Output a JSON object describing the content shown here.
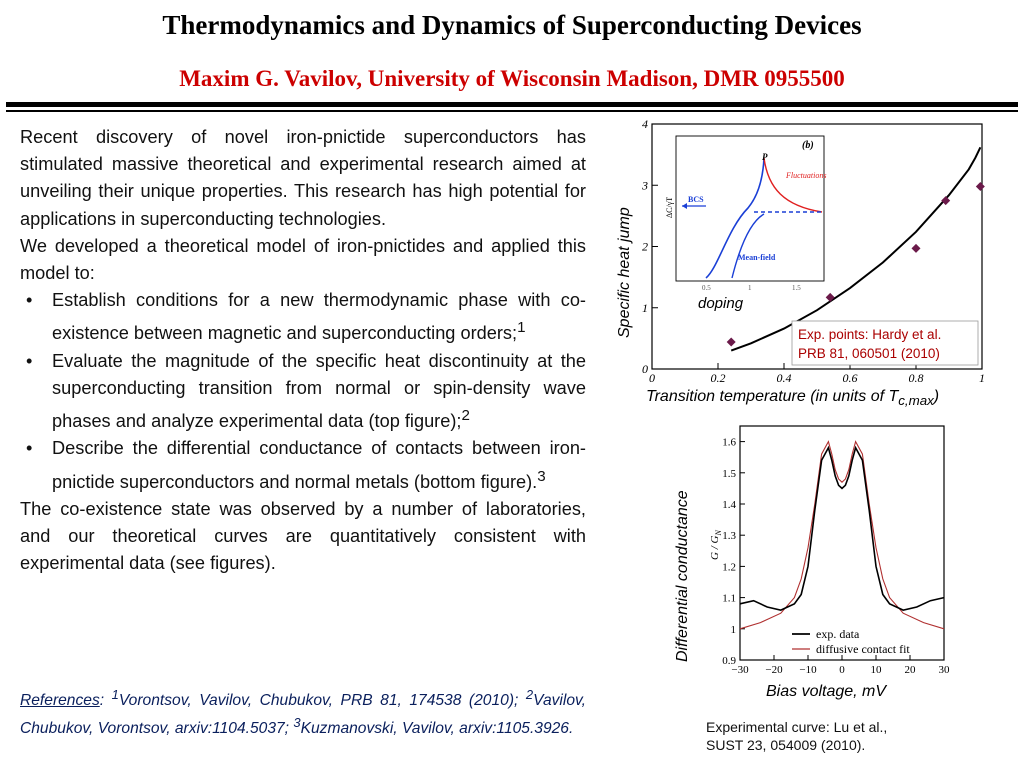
{
  "header": {
    "title": "Thermodynamics and Dynamics of Superconducting Devices",
    "subtitle": "Maxim G. Vavilov, University of Wisconsin Madison, DMR 0955500"
  },
  "body": {
    "para1": "Recent discovery of novel iron-pnictide superconductors has stimulated massive theoretical and experimental research aimed at unveiling their unique properties. This research has high potential for applications in superconducting technologies.",
    "para2": "We developed a theoretical model of iron-pnictides and applied this model to:",
    "bullets": [
      {
        "text": "Establish conditions for a new thermodynamic phase with co-existence between magnetic and superconducting orders;",
        "sup": "1"
      },
      {
        "text": "Evaluate the magnitude of the specific heat discontinuity at the superconducting transition from normal or spin-density wave phases and analyze experimental data (top figure);",
        "sup": "2"
      },
      {
        "text": "Describe the differential conductance of contacts between iron-pnictide superconductors and normal metals (bottom figure).",
        "sup": "3"
      }
    ],
    "para3": "The co-existence state was observed by a number of laboratories, and our theoretical curves are quantitatively consistent with experimental data (see figures)."
  },
  "references": {
    "lead": "References",
    "colon": ": ",
    "sup1": "1",
    "ref1": "Vorontsov, Vavilov, Chubukov, PRB 81, 174538 (2010); ",
    "sup2": "2",
    "ref2": "Vavilov, Chubukov, Vorontsov, arxiv:1104.5037; ",
    "sup3": "3",
    "ref3": "Kuzmanovski, Vavilov, arxiv:1105.3926."
  },
  "chart_data": [
    {
      "type": "scatter",
      "ylabel": "Specific heat jump",
      "xlabel_main": "Transition temperature (in units of T",
      "xlabel_sub": "c,max",
      "xlabel_end": ")",
      "xlim": [
        0,
        1
      ],
      "ylim": [
        0,
        4
      ],
      "x_ticks": [
        "0",
        "0.2",
        "0.4",
        "0.6",
        "0.8",
        "1"
      ],
      "y_ticks": [
        "0",
        "1",
        "2",
        "3",
        "4"
      ],
      "annotation_doping": "doping",
      "legend_line1": "Exp. points: Hardy et al.",
      "legend_line2": "PRB 81, 060501 (2010)",
      "points": [
        {
          "x": 0.24,
          "y": 0.44
        },
        {
          "x": 0.54,
          "y": 1.17
        },
        {
          "x": 0.8,
          "y": 1.97
        },
        {
          "x": 0.89,
          "y": 2.75
        },
        {
          "x": 0.995,
          "y": 2.98
        }
      ],
      "curve": [
        {
          "x": 0.24,
          "y": 0.3
        },
        {
          "x": 0.3,
          "y": 0.42
        },
        {
          "x": 0.4,
          "y": 0.66
        },
        {
          "x": 0.5,
          "y": 0.96
        },
        {
          "x": 0.6,
          "y": 1.32
        },
        {
          "x": 0.7,
          "y": 1.74
        },
        {
          "x": 0.8,
          "y": 2.24
        },
        {
          "x": 0.9,
          "y": 2.84
        },
        {
          "x": 0.96,
          "y": 3.26
        },
        {
          "x": 0.98,
          "y": 3.45
        },
        {
          "x": 0.995,
          "y": 3.62
        }
      ],
      "inset": {
        "panel_label": "(b)",
        "ylabel": "ΔC/γT",
        "label_p": "P",
        "label_fluct": "Fluctuations",
        "label_bcs": "BCS",
        "label_meanfield": "Mean-field",
        "x_ticks": [
          "0.5",
          "1",
          "1.5"
        ]
      }
    },
    {
      "type": "line",
      "ylabel_outer": "Differential conductance",
      "ylabel_inner": "G / G",
      "ylabel_inner_sub": "N",
      "xlabel": "Bias voltage, mV",
      "xlim": [
        -30,
        30
      ],
      "ylim": [
        0.9,
        1.65
      ],
      "x_ticks": [
        "-30",
        "-20",
        "-10",
        "0",
        "10",
        "20",
        "30"
      ],
      "y_ticks": [
        "0.9",
        "1",
        "1.1",
        "1.2",
        "1.3",
        "1.4",
        "1.5",
        "1.6"
      ],
      "legend": [
        "exp. data",
        "diffusive contact fit"
      ],
      "series": [
        {
          "name": "exp. data",
          "color": "#000000",
          "x": [
            -30,
            -26,
            -22,
            -18,
            -14,
            -12,
            -10,
            -8,
            -6,
            -4,
            -3,
            -2,
            -1,
            0,
            1,
            2,
            3,
            4,
            6,
            8,
            10,
            12,
            14,
            18,
            22,
            26,
            30
          ],
          "y": [
            1.08,
            1.09,
            1.07,
            1.06,
            1.08,
            1.11,
            1.2,
            1.38,
            1.54,
            1.58,
            1.54,
            1.49,
            1.46,
            1.45,
            1.46,
            1.49,
            1.54,
            1.58,
            1.54,
            1.38,
            1.2,
            1.11,
            1.08,
            1.06,
            1.07,
            1.09,
            1.1
          ]
        },
        {
          "name": "diffusive contact fit",
          "color": "#b03030",
          "x": [
            -30,
            -24,
            -18,
            -14,
            -12,
            -10,
            -8,
            -6,
            -4,
            -3,
            -2,
            -1,
            0,
            1,
            2,
            3,
            4,
            6,
            8,
            10,
            12,
            14,
            18,
            24,
            30
          ],
          "y": [
            1.0,
            1.02,
            1.05,
            1.1,
            1.16,
            1.26,
            1.4,
            1.56,
            1.6,
            1.56,
            1.51,
            1.48,
            1.47,
            1.48,
            1.51,
            1.56,
            1.6,
            1.56,
            1.4,
            1.26,
            1.16,
            1.1,
            1.05,
            1.02,
            1.0
          ]
        }
      ]
    }
  ],
  "captions": {
    "bottom_line1": "Experimental curve: Lu et al.,",
    "bottom_line2": "SUST 23, 054009 (2010)."
  },
  "colors": {
    "accent_red": "#cc0000",
    "points": "#6b1a4a",
    "inset_blue": "#1a3fd6",
    "inset_red": "#e02020",
    "ref_blue": "#0a1f5c"
  }
}
